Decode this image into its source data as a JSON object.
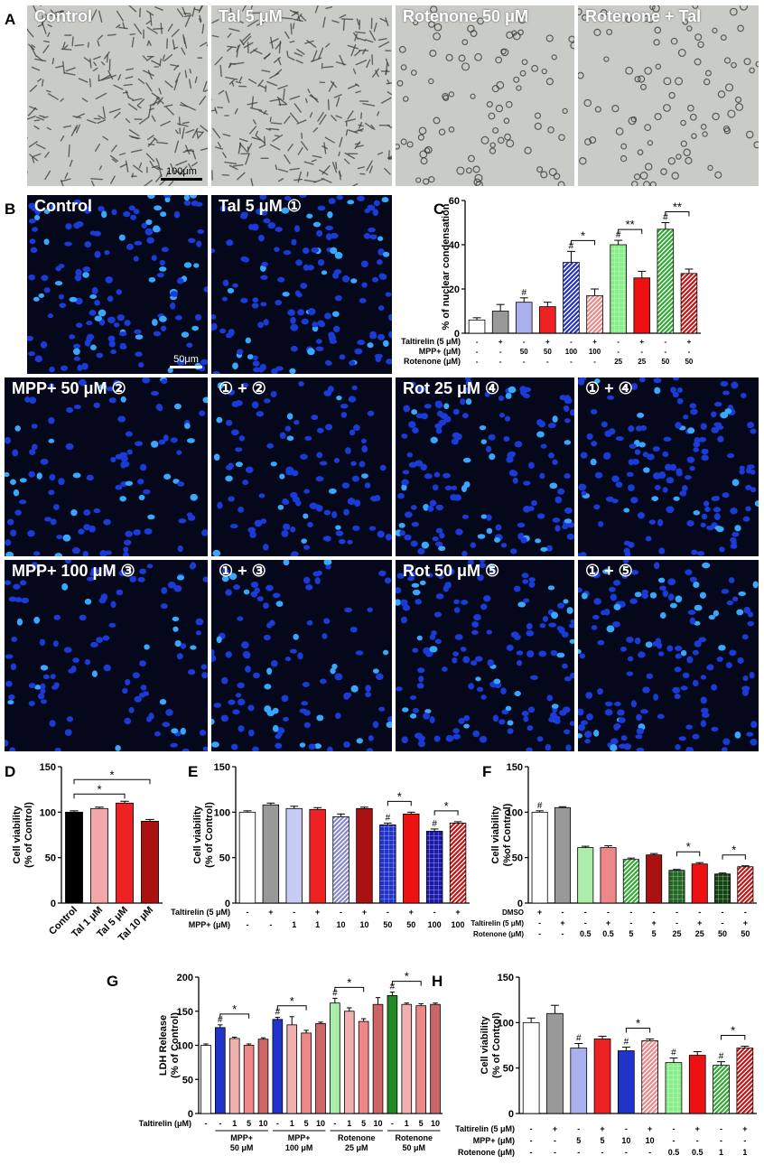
{
  "panel_labels": {
    "A": "A",
    "B": "B",
    "C": "C",
    "D": "D",
    "E": "E",
    "F": "F",
    "G": "G",
    "H": "H"
  },
  "brightfield": {
    "tiles": [
      "Control",
      "Tal 5 μM",
      "Rotenone 50 μM",
      "Rotenone + Tal"
    ],
    "scale": "100μm",
    "colors": {
      "bg": "#c9cbc7",
      "cell": "#3c3e3a"
    }
  },
  "fluorescence": {
    "row1": [
      "Control",
      "Tal 5 μM ①"
    ],
    "row2": [
      "MPP+ 50 μM ②",
      "① + ②",
      "Rot 25 μM ④",
      "① + ④"
    ],
    "row3": [
      "MPP+ 100 μM ③",
      "① + ③",
      "Rot 50 μM ⑤",
      "① + ⑤"
    ],
    "scale": "50μm",
    "colors": {
      "bg": "#05081a",
      "nucleus": "#1b3bd6",
      "bright": "#38a8ff"
    }
  },
  "chart_data": [
    {
      "id": "C",
      "type": "bar",
      "ylabel": "% of nuclear condensation",
      "ylim": [
        0,
        60
      ],
      "yticks": [
        0,
        20,
        40,
        60
      ],
      "values": [
        6,
        10,
        14,
        12,
        32,
        17,
        40,
        25,
        47,
        27
      ],
      "errors": [
        1,
        3,
        2,
        2,
        5,
        3,
        2,
        3,
        3,
        2
      ],
      "fills": [
        "solid:#ffffff",
        "solid:#999999",
        "solid:#aab0ee",
        "solid:#ee2222",
        "diag:#2233cc",
        "diag:#ee8888",
        "grid:#88ee88",
        "solid:#ee1111",
        "diag:#33aa33",
        "diag:#cc1111"
      ],
      "marks": [
        "",
        "",
        "#",
        "",
        "#",
        "",
        "#",
        "",
        "#",
        ""
      ],
      "brackets": [
        {
          "a": 4,
          "b": 5,
          "t": "*"
        },
        {
          "a": 6,
          "b": 7,
          "t": "**"
        },
        {
          "a": 8,
          "b": 9,
          "t": "**"
        }
      ],
      "table": [
        {
          "label": "Taltirelin (5 μM)",
          "cells": [
            "-",
            "+",
            "-",
            "+",
            "-",
            "+",
            "-",
            "+",
            "-",
            "+"
          ]
        },
        {
          "label": "MPP+ (μM)",
          "cells": [
            "-",
            "-",
            "50",
            "50",
            "100",
            "100",
            "-",
            "-",
            "-",
            "-"
          ]
        },
        {
          "label": "Rotenone (μM)",
          "cells": [
            "-",
            "-",
            "-",
            "-",
            "-",
            "-",
            "25",
            "25",
            "50",
            "50"
          ]
        }
      ]
    },
    {
      "id": "D",
      "type": "bar",
      "ylabel": "Cell viability",
      "ylabel2": "(% of Control)",
      "ylim": [
        0,
        150
      ],
      "yticks": [
        0,
        50,
        100,
        150
      ],
      "categories": [
        "Control",
        "Tal 1 μM",
        "Tal 5 μM",
        "Tal 10 μM"
      ],
      "values": [
        100,
        104,
        110,
        90
      ],
      "errors": [
        1.5,
        1.5,
        2,
        2
      ],
      "fills": [
        "solid:#000000",
        "solid:#f2a8a8",
        "solid:#ee2222",
        "solid:#aa1111"
      ],
      "brackets": [
        {
          "a": 0,
          "b": 2,
          "t": "*"
        },
        {
          "a": 0,
          "b": 3,
          "t": "*"
        }
      ]
    },
    {
      "id": "E",
      "type": "bar",
      "ylabel": "Cell viability",
      "ylabel2": "(% of Control)",
      "ylim": [
        0,
        150
      ],
      "yticks": [
        0,
        50,
        100,
        150
      ],
      "values": [
        100,
        108,
        104,
        103,
        95,
        104,
        86,
        98,
        79,
        88
      ],
      "errors": [
        1.5,
        2,
        2.5,
        2,
        3,
        1.5,
        2,
        2,
        2.5,
        1.5
      ],
      "fills": [
        "solid:#ffffff",
        "solid:#999999",
        "solid:#c8ccf4",
        "solid:#ee2222",
        "diag:#8888cc",
        "solid:#aa1111",
        "grid:#2233cc",
        "solid:#ee1111",
        "grid:#1a1aaa",
        "diag:#cc1111"
      ],
      "marks": [
        "",
        "",
        "",
        "",
        "",
        "",
        "#",
        "",
        "#",
        ""
      ],
      "brackets": [
        {
          "a": 6,
          "b": 7,
          "t": "*"
        },
        {
          "a": 8,
          "b": 9,
          "t": "*"
        }
      ],
      "table": [
        {
          "label": "Taltirelin (5 μM)",
          "cells": [
            "-",
            "+",
            "-",
            "+",
            "-",
            "+",
            "-",
            "+",
            "-",
            "+"
          ]
        },
        {
          "label": "MPP+ (μM)",
          "cells": [
            "-",
            "-",
            "1",
            "1",
            "10",
            "10",
            "50",
            "50",
            "100",
            "100"
          ]
        }
      ]
    },
    {
      "id": "F",
      "type": "bar",
      "ylabel": "Cell viability",
      "ylabel2": "(%of Control)",
      "ylim": [
        0,
        150
      ],
      "yticks": [
        0,
        50,
        100,
        150
      ],
      "values": [
        100,
        105,
        61,
        61,
        48,
        53,
        36,
        43,
        32,
        40
      ],
      "errors": [
        1.5,
        1,
        1.5,
        2,
        1.5,
        1.5,
        1,
        1.5,
        1,
        1
      ],
      "fills": [
        "solid:#ffffff",
        "solid:#999999",
        "solid:#aaeeaa",
        "solid:#ee8888",
        "diag:#33aa33",
        "solid:#aa1111",
        "grid:#226622",
        "solid:#ee1111",
        "grid:#114411",
        "diag:#cc1111"
      ],
      "marks": [
        "#",
        "",
        "",
        "",
        "",
        "",
        "",
        "",
        "",
        ""
      ],
      "brackets": [
        {
          "a": 6,
          "b": 7,
          "t": "*"
        },
        {
          "a": 8,
          "b": 9,
          "t": "*"
        }
      ],
      "table": [
        {
          "label": "DMSO",
          "cells": [
            "+",
            "-",
            "-",
            "-",
            "-",
            "-",
            "-",
            "-",
            "-",
            "-"
          ]
        },
        {
          "label": "Taltirelin (5 μM)",
          "cells": [
            "-",
            "+",
            "-",
            "+",
            "-",
            "+",
            "-",
            "+",
            "-",
            "+"
          ]
        },
        {
          "label": "Rotenone (μM)",
          "cells": [
            "-",
            "-",
            "0.5",
            "0.5",
            "5",
            "5",
            "25",
            "25",
            "50",
            "50"
          ]
        }
      ]
    },
    {
      "id": "G",
      "type": "bar",
      "ylabel": "LDH Release",
      "ylabel2": "(% of Control)",
      "ylim": [
        0,
        200
      ],
      "yticks": [
        0,
        50,
        100,
        150,
        200
      ],
      "values": [
        100,
        126,
        110,
        100,
        109,
        138,
        130,
        118,
        132,
        162,
        150,
        135,
        160,
        173,
        160,
        158,
        160
      ],
      "errors": [
        2,
        4,
        2,
        2,
        2,
        3,
        12,
        4,
        2,
        7,
        5,
        4,
        10,
        5,
        2,
        3,
        2
      ],
      "fills": [
        "solid:#ffffff",
        "solid:#2233cc",
        "solid:#f0b0b0",
        "solid:#ee8888",
        "solid:#cc6666",
        "solid:#2233cc",
        "solid:#f0b0b0",
        "solid:#ee8888",
        "solid:#cc6666",
        "solid:#aaeeaa",
        "solid:#f0b0b0",
        "solid:#ee8888",
        "solid:#cc6666",
        "solid:#228822",
        "solid:#f0b0b0",
        "solid:#ee8888",
        "solid:#cc6666"
      ],
      "marks": [
        "",
        "#",
        "",
        "",
        "",
        "#",
        "",
        "",
        "",
        "#",
        "",
        "",
        "",
        "#",
        "",
        "",
        ""
      ],
      "brackets": [
        {
          "a": 1,
          "b": 3,
          "t": "*"
        },
        {
          "a": 5,
          "b": 7,
          "t": "*"
        },
        {
          "a": 9,
          "b": 11,
          "t": "*"
        },
        {
          "a": 13,
          "b": 15,
          "t": "*"
        }
      ],
      "row_label": "Taltirelin (μM)",
      "row_cells": [
        "-",
        "-",
        "1",
        "5",
        "10",
        "-",
        "1",
        "5",
        "10",
        "-",
        "1",
        "5",
        "10",
        "-",
        "1",
        "5",
        "10"
      ],
      "groups": [
        {
          "from": 1,
          "to": 4,
          "l1": "MPP+",
          "l2": "50 μM"
        },
        {
          "from": 5,
          "to": 8,
          "l1": "MPP+",
          "l2": "100 μM"
        },
        {
          "from": 9,
          "to": 12,
          "l1": "Rotenone",
          "l2": "25 μM"
        },
        {
          "from": 13,
          "to": 16,
          "l1": "Rotenone",
          "l2": "50 μM"
        }
      ]
    },
    {
      "id": "H",
      "type": "bar",
      "ylabel": "Cell viability",
      "ylabel2": "(% of Control)",
      "ylim": [
        0,
        150
      ],
      "yticks": [
        0,
        50,
        100,
        150
      ],
      "values": [
        100,
        110,
        72,
        82,
        69,
        80,
        56,
        64,
        53,
        72
      ],
      "errors": [
        5,
        9,
        5,
        3,
        4,
        2,
        5,
        4,
        4,
        2
      ],
      "fills": [
        "solid:#ffffff",
        "solid:#999999",
        "solid:#aab0ee",
        "solid:#ee2222",
        "solid:#2233cc",
        "diag:#ee8888",
        "grid:#88ee88",
        "solid:#ee1111",
        "diag:#33aa33",
        "diag:#cc1111"
      ],
      "marks": [
        "",
        "",
        "#",
        "",
        "#",
        "",
        "#",
        "",
        "#",
        ""
      ],
      "brackets": [
        {
          "a": 4,
          "b": 5,
          "t": "*"
        },
        {
          "a": 8,
          "b": 9,
          "t": "*"
        }
      ],
      "table": [
        {
          "label": "Taltirelin (5 μM)",
          "cells": [
            "-",
            "+",
            "-",
            "+",
            "-",
            "+",
            "-",
            "+",
            "-",
            "+"
          ]
        },
        {
          "label": "MPP+ (μM)",
          "cells": [
            "-",
            "-",
            "5",
            "5",
            "10",
            "10",
            "-",
            "-",
            "-",
            "-"
          ]
        },
        {
          "label": "Rotenone (μM)",
          "cells": [
            "-",
            "-",
            "-",
            "-",
            "-",
            "-",
            "0.5",
            "0.5",
            "1",
            "1"
          ]
        }
      ]
    }
  ]
}
